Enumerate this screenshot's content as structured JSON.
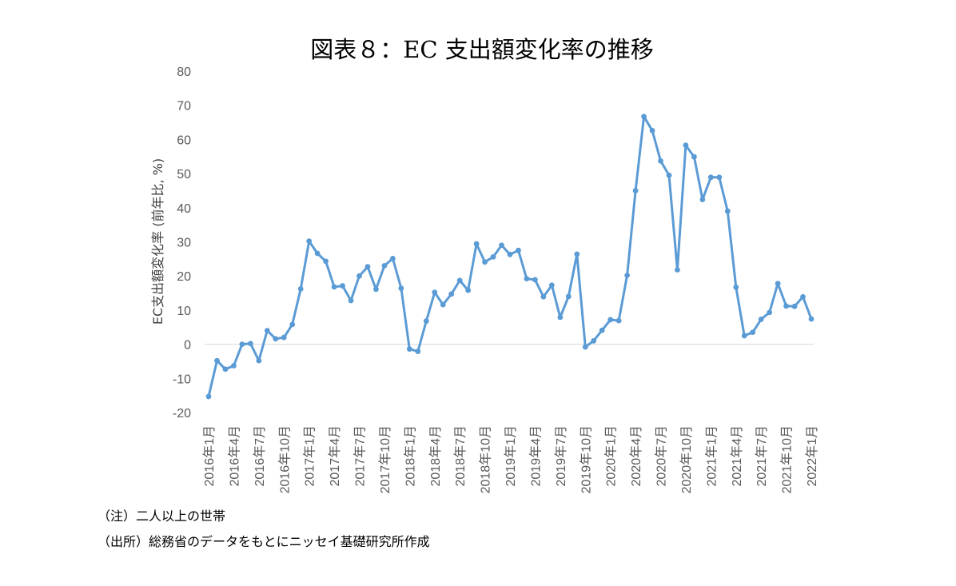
{
  "chart_data": {
    "type": "line",
    "title": "図表８：EC 支出額変化率の推移",
    "ylabel": "EC支出額変化率 (前年比, %)",
    "xlabel": "",
    "ylim": [
      -20,
      80
    ],
    "yticks": [
      80,
      70,
      60,
      50,
      40,
      30,
      20,
      10,
      0,
      -10,
      -20
    ],
    "x_tick_labels": [
      "2016年1月",
      "2016年4月",
      "2016年7月",
      "2016年10月",
      "2017年1月",
      "2017年4月",
      "2017年7月",
      "2017年10月",
      "2018年1月",
      "2018年4月",
      "2018年7月",
      "2018年10月",
      "2019年1月",
      "2019年4月",
      "2019年7月",
      "2019年10月",
      "2020年1月",
      "2020年4月",
      "2020年7月",
      "2020年10月",
      "2021年1月",
      "2021年4月",
      "2021年7月",
      "2021年10月",
      "2022年1月"
    ],
    "color": "#5b9bd5",
    "grid": false,
    "x_start": "2016年1月",
    "x_end": "2022年1月",
    "values": [
      -15.3,
      -4.8,
      -7.3,
      -6.3,
      0.0,
      0.2,
      -4.8,
      4.0,
      1.6,
      2.0,
      5.8,
      16.2,
      30.2,
      26.6,
      24.3,
      16.8,
      17.1,
      12.8,
      20.0,
      22.7,
      16.1,
      23.0,
      25.1,
      16.4,
      -1.4,
      -2.1,
      6.8,
      15.2,
      11.6,
      14.7,
      18.7,
      15.8,
      29.4,
      24.1,
      25.6,
      29.0,
      26.3,
      27.5,
      19.2,
      18.9,
      13.9,
      17.3,
      7.9,
      14.0,
      26.4,
      -0.8,
      1.0,
      4.1,
      7.2,
      6.9,
      20.2,
      45.0,
      66.7,
      62.6,
      53.7,
      49.5,
      21.8,
      58.3,
      54.9,
      42.4,
      48.9,
      48.9,
      39.0,
      16.7,
      2.5,
      3.5,
      7.3,
      9.3,
      17.8,
      11.2,
      11.1,
      13.9,
      7.4
    ]
  },
  "notes": {
    "note1": "（注）二人以上の世帯",
    "note2": "（出所）総務省のデータをもとにニッセイ基礎研究所作成"
  }
}
